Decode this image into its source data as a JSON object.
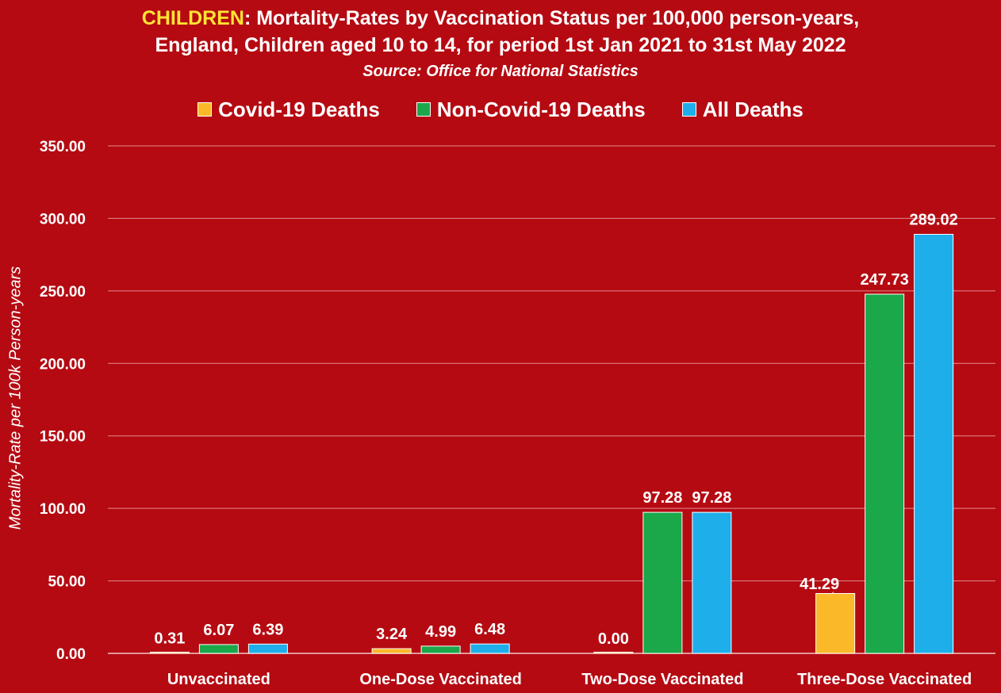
{
  "title": {
    "highlight": "CHILDREN",
    "line1_rest": ": Mortality-Rates by Vaccination Status per 100,000 person-years,",
    "line2": "England, Children aged 10 to 14, for period 1st Jan 2021 to 31st May 2022"
  },
  "subtitle": "Source: Office for National Statistics",
  "chart_data": {
    "type": "bar",
    "title": "CHILDREN: Mortality-Rates by Vaccination Status per 100,000 person-years, England, Children aged 10 to 14, for period 1st Jan 2021 to 31st May 2022",
    "subtitle": "Source: Office for National Statistics",
    "xlabel": "",
    "ylabel": "Mortality-Rate per 100k Person-years",
    "ylim": [
      0,
      350
    ],
    "yticks": [
      "0.00",
      "50.00",
      "100.00",
      "150.00",
      "200.00",
      "250.00",
      "300.00",
      "350.00"
    ],
    "grid": true,
    "legend_position": "top",
    "categories": [
      "Unvaccinated",
      "One-Dose Vaccinated",
      "Two-Dose Vaccinated",
      "Three-Dose Vaccinated"
    ],
    "series": [
      {
        "name": "Covid-19 Deaths",
        "color": "#fbb829",
        "values": [
          0.31,
          3.24,
          0.0,
          41.29
        ],
        "labels": [
          "0.31",
          "3.24",
          "0.00",
          "41.29"
        ]
      },
      {
        "name": "Non-Covid-19 Deaths",
        "color": "#1aa84a",
        "values": [
          6.07,
          4.99,
          97.28,
          247.73
        ],
        "labels": [
          "6.07",
          "4.99",
          "97.28",
          "247.73"
        ]
      },
      {
        "name": "All Deaths",
        "color": "#1eaeea",
        "values": [
          6.39,
          6.48,
          97.28,
          289.02
        ],
        "labels": [
          "6.39",
          "6.48",
          "97.28",
          "289.02"
        ]
      }
    ]
  },
  "colors": {
    "background": "#b50a12",
    "title_highlight": "#ffe433",
    "text": "#ffffff",
    "gridline": "#e58a8e"
  }
}
